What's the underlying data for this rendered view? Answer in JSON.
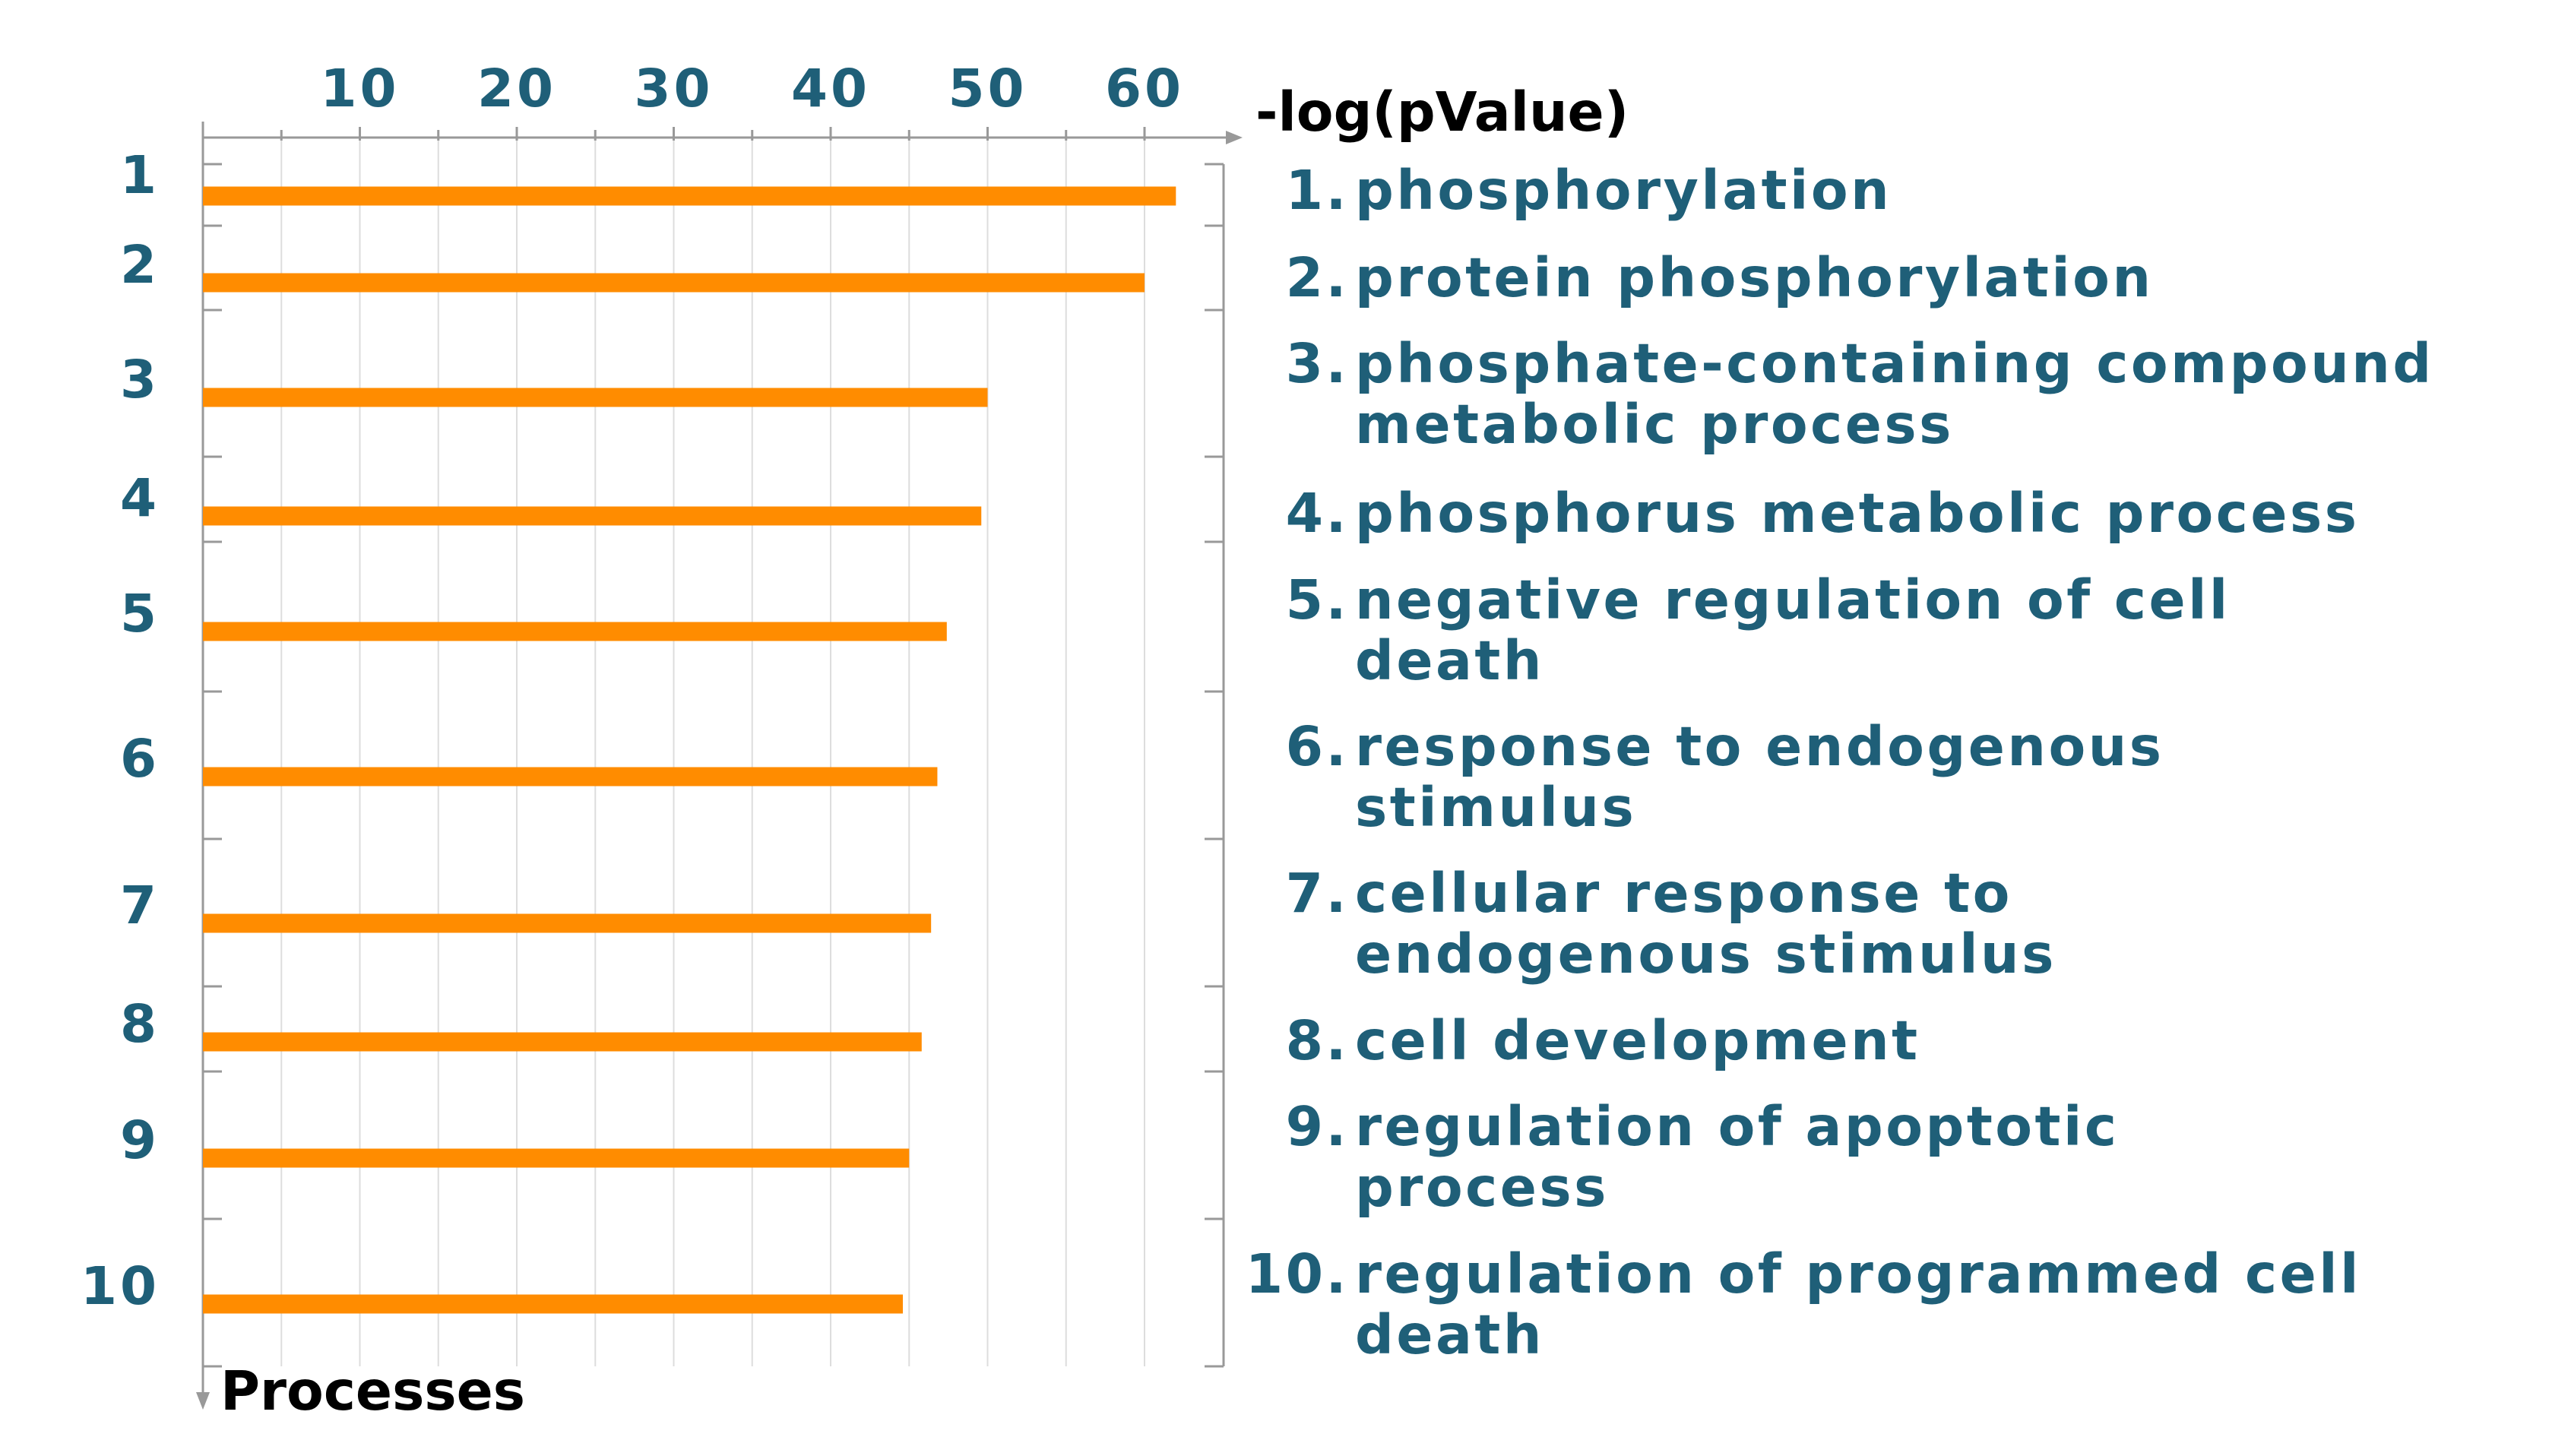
{
  "chart_data": {
    "type": "bar",
    "orientation": "horizontal",
    "title": "",
    "xlabel": "-log(pValue)",
    "ylabel": "Processes",
    "xlim": [
      0,
      65
    ],
    "x_ticks": [
      10,
      20,
      30,
      40,
      50,
      60
    ],
    "x_tick_labels": [
      "10",
      "20",
      "30",
      "40",
      "50",
      "60"
    ],
    "x_axis_position": "top",
    "grid": true,
    "categories": [
      "1",
      "2",
      "3",
      "4",
      "5",
      "6",
      "7",
      "8",
      "9",
      "10"
    ],
    "values": [
      62,
      60,
      50,
      49.6,
      47.4,
      46.8,
      46.4,
      45.8,
      45,
      44.6
    ],
    "legend": [
      {
        "number": "1.",
        "lines": [
          "phosphorylation"
        ]
      },
      {
        "number": "2.",
        "lines": [
          "protein phosphorylation"
        ]
      },
      {
        "number": "3.",
        "lines": [
          "phosphate-containing compound",
          "metabolic process"
        ]
      },
      {
        "number": "4.",
        "lines": [
          "phosphorus metabolic process"
        ]
      },
      {
        "number": "5.",
        "lines": [
          "negative regulation of cell",
          "death"
        ]
      },
      {
        "number": "6.",
        "lines": [
          "response to endogenous",
          "stimulus"
        ]
      },
      {
        "number": "7.",
        "lines": [
          "cellular response to",
          "endogenous stimulus"
        ]
      },
      {
        "number": "8.",
        "lines": [
          "cell development"
        ]
      },
      {
        "number": "9.",
        "lines": [
          "regulation of apoptotic",
          "process"
        ]
      },
      {
        "number": "10.",
        "lines": [
          "regulation of programmed cell",
          "death"
        ]
      }
    ],
    "legend_placement": "right",
    "colors": {
      "bar": "#ff8c00",
      "label": "#1f5f78",
      "axis_title": "#000000",
      "axis": "#999999",
      "grid": "#dddddd"
    }
  }
}
